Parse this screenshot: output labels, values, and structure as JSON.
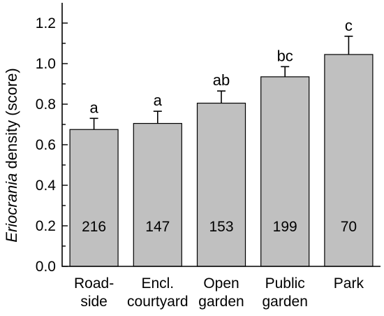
{
  "chart_data": {
    "type": "bar",
    "ylabel": {
      "italic_part": "Eriocrania",
      "rest": " density (score)"
    },
    "xlabel": "",
    "categories": [
      [
        "Road-",
        "side"
      ],
      [
        "Encl.",
        "courtyard"
      ],
      [
        "Open",
        "garden"
      ],
      [
        "Public",
        "garden"
      ],
      [
        "Park"
      ]
    ],
    "values": [
      0.675,
      0.705,
      0.805,
      0.935,
      1.045
    ],
    "errors": [
      0.055,
      0.06,
      0.06,
      0.05,
      0.09
    ],
    "significance_letters": [
      "a",
      "a",
      "ab",
      "bc",
      "c"
    ],
    "n_labels": [
      "216",
      "147",
      "153",
      "199",
      "70"
    ],
    "ylim": [
      0,
      1.3
    ],
    "yticks": [
      0.0,
      0.2,
      0.4,
      0.6,
      0.8,
      1.0,
      1.2
    ],
    "ytick_labels": [
      "0.0",
      "0.2",
      "0.4",
      "0.6",
      "0.8",
      "1.0",
      "1.2"
    ],
    "grid": false,
    "legend": "none",
    "colors": {
      "bar_fill": "#c0c0c0",
      "bar_stroke": "#000000",
      "axis": "#000000"
    }
  }
}
